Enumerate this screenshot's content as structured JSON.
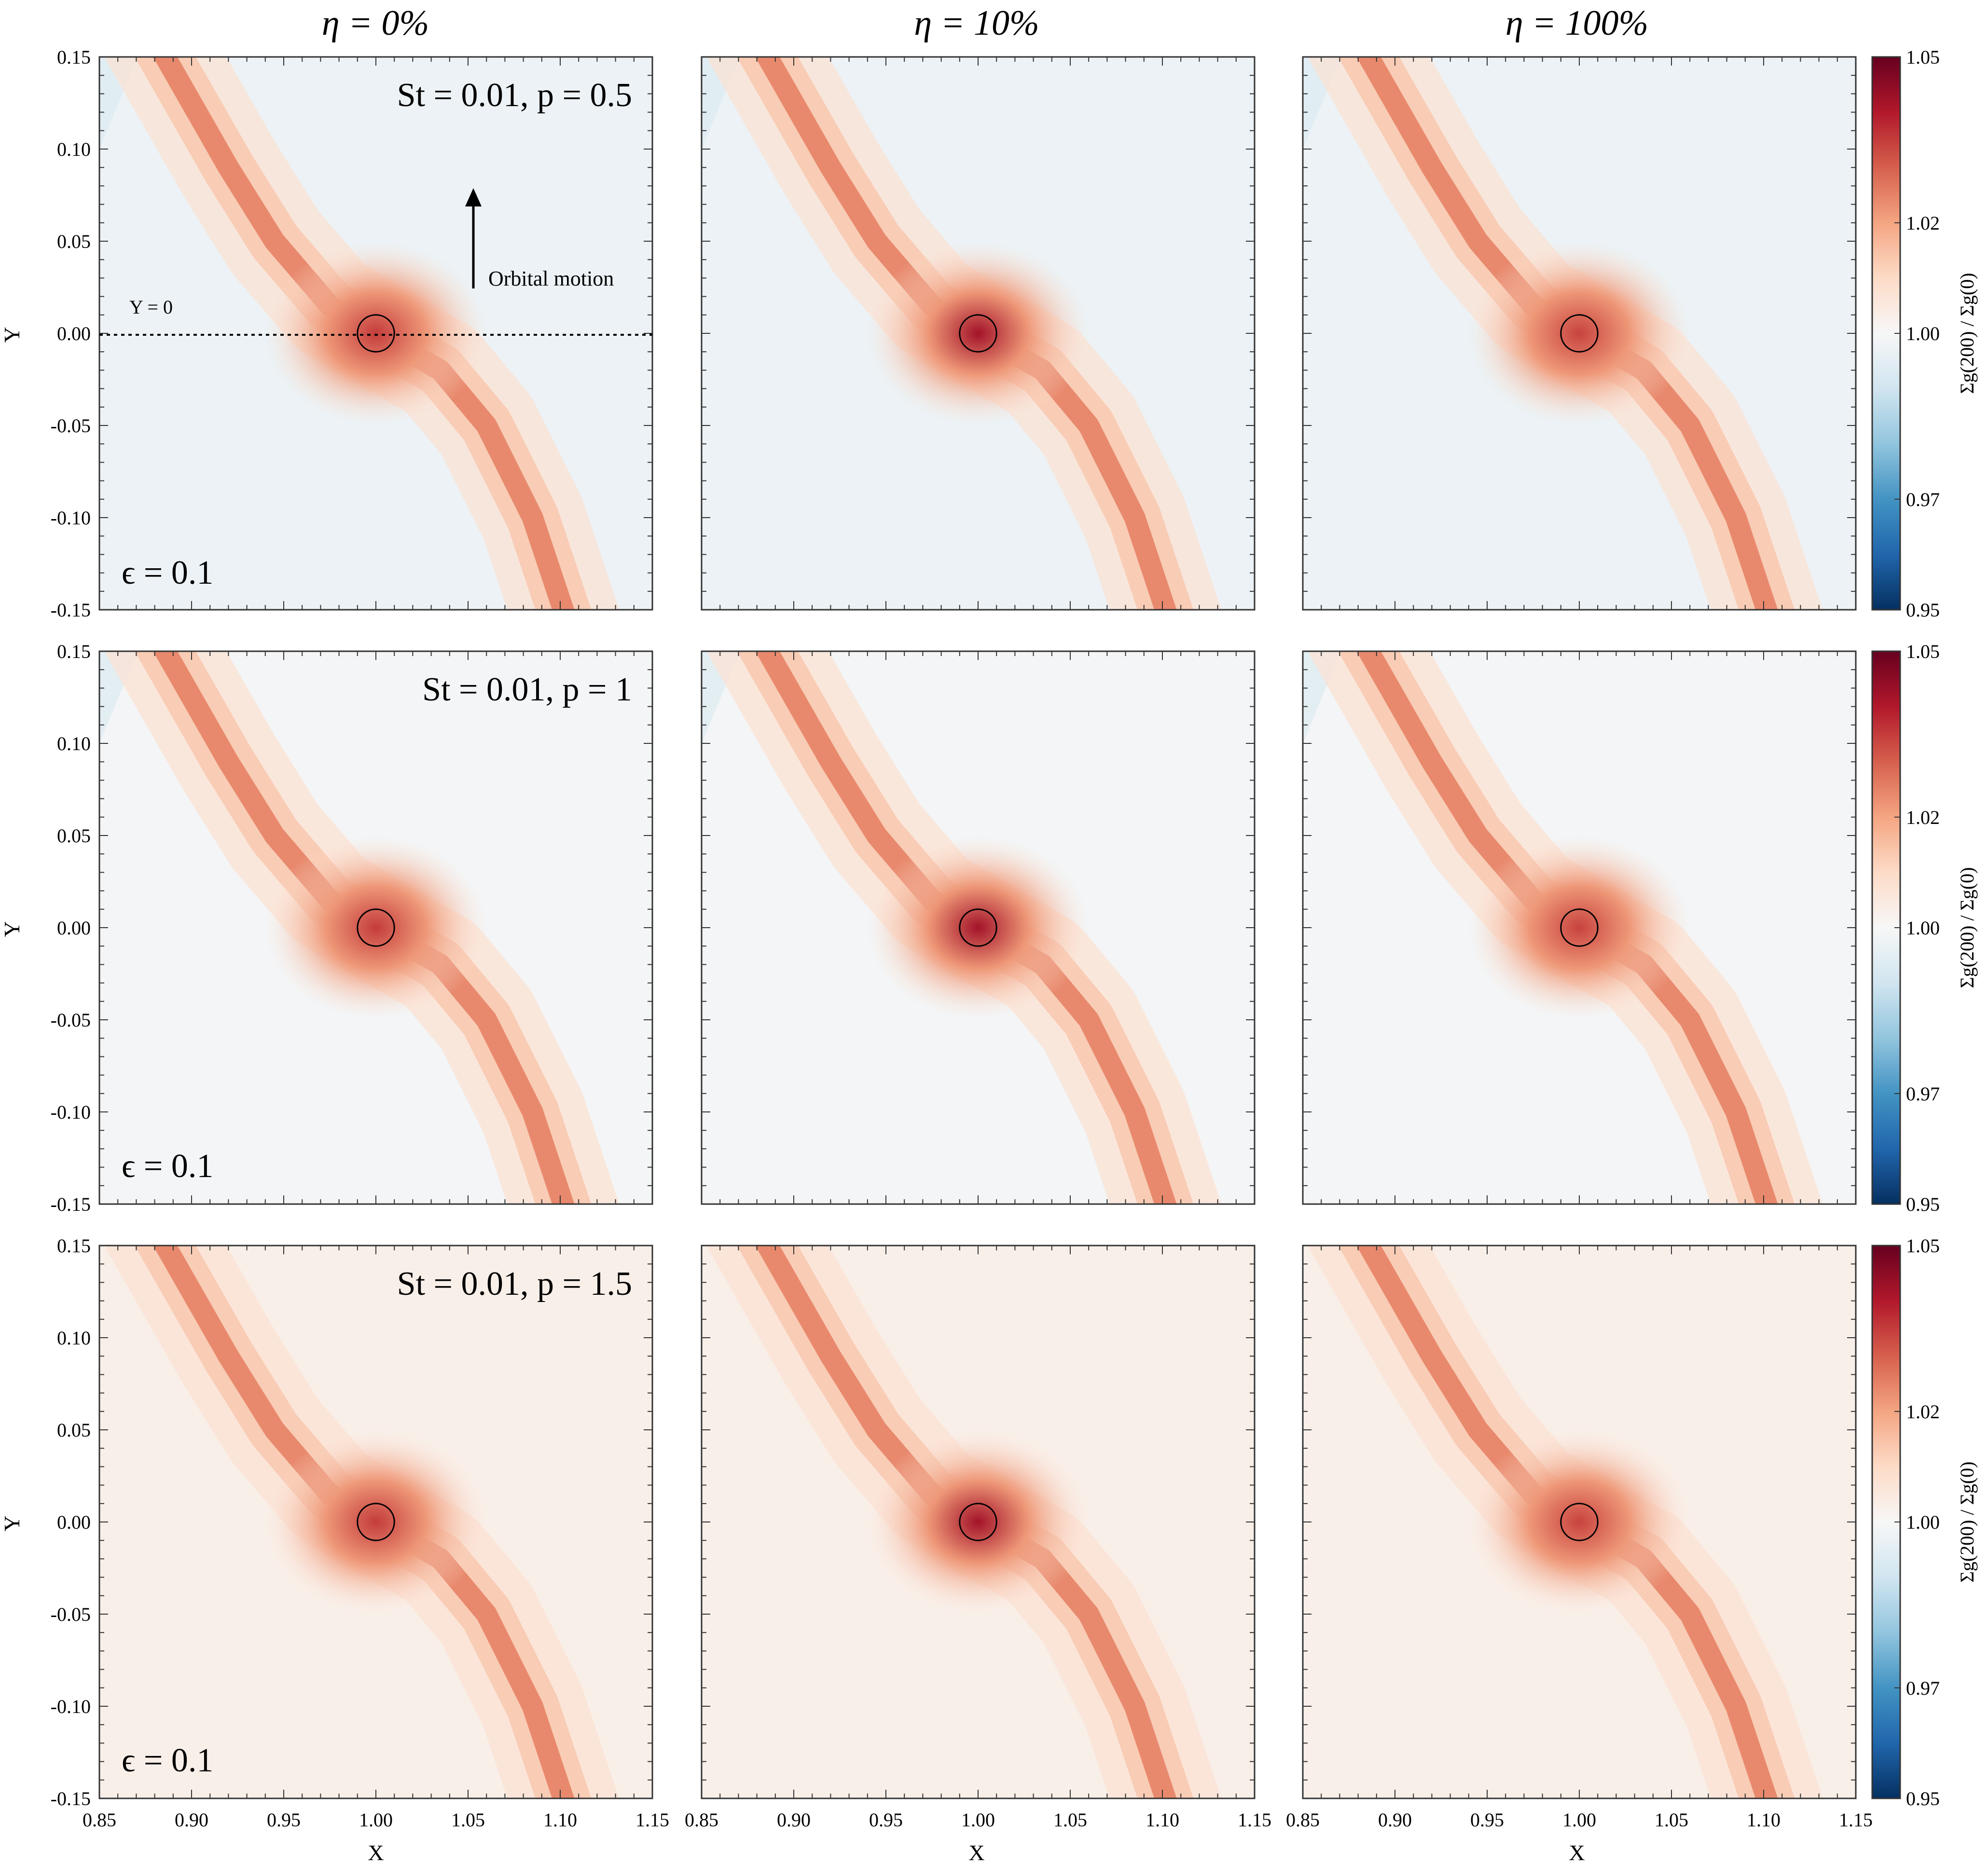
{
  "chart_data": {
    "type": "heatmap",
    "column_titles": [
      "η = 0%",
      "η = 10%",
      "η = 100%"
    ],
    "row_titles": [
      "St = 0.01, p = 0.5",
      "St = 0.01, p = 1",
      "St = 0.01, p = 1.5"
    ],
    "xlabel": "X",
    "ylabel": "Y",
    "xlim": [
      0.85,
      1.15
    ],
    "ylim": [
      -0.15,
      0.15
    ],
    "xticks": [
      "0.85",
      "0.90",
      "0.95",
      "1.00",
      "1.05",
      "1.10",
      "1.15"
    ],
    "yticks": [
      "0.15",
      "0.10",
      "0.05",
      "0.00",
      "-0.05",
      "-0.10",
      "-0.15"
    ],
    "colorbar": {
      "label": "Σg(200) / Σg(0)",
      "range": [
        0.95,
        1.05
      ],
      "ticks": [
        "1.05",
        "1.02",
        "1.00",
        "0.97",
        "0.95"
      ],
      "colors": {
        "low": "#053061",
        "mid": "#f7f7f7",
        "high": "#67001f"
      }
    },
    "epsilon_label": "ϵ = 0.1",
    "annotations": {
      "orbital_motion": "Orbital motion",
      "y_zero": "Y = 0"
    },
    "planet": {
      "x": 1.0,
      "y": 0.0,
      "radius": 0.01
    },
    "field": {
      "rows": [
        {
          "p": 0.5,
          "background": 0.997
        },
        {
          "p": 1.0,
          "background": 0.999
        },
        {
          "p": 1.5,
          "background": 1.003
        }
      ],
      "columns": [
        {
          "eta": 0,
          "core_peak": 1.035
        },
        {
          "eta": 10,
          "core_peak": 1.042
        },
        {
          "eta": 100,
          "core_peak": 1.034
        }
      ]
    }
  }
}
